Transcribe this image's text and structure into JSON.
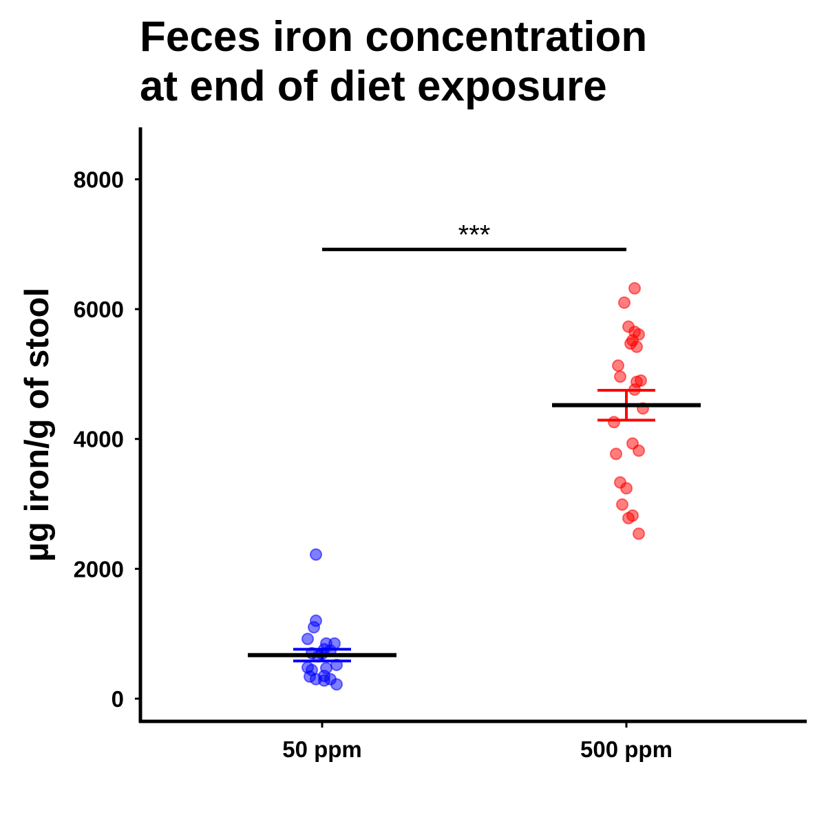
{
  "chart_data": {
    "type": "scatter",
    "title": "Feces iron concentration",
    "subtitle": "at end of diet exposure",
    "xlabel": "",
    "ylabel": "µg iron/g of stool",
    "categories": [
      "50 ppm",
      "500 ppm"
    ],
    "ylim": [
      -350,
      8800
    ],
    "yticks": [
      0,
      2000,
      4000,
      6000,
      8000
    ],
    "ytick_labels": [
      "0",
      "2000",
      "4000",
      "6000",
      "8000"
    ],
    "grid": false,
    "legend": "none",
    "significance": {
      "label": "***",
      "y": 6920,
      "between": [
        "50 ppm",
        "500 ppm"
      ]
    },
    "series": [
      {
        "category": "50 ppm",
        "color": "#0000ff",
        "mean": 670,
        "sem_low": 580,
        "sem_high": 760,
        "points": [
          {
            "x": -0.03,
            "y": 2220
          },
          {
            "x": -0.03,
            "y": 1200
          },
          {
            "x": -0.04,
            "y": 1100
          },
          {
            "x": -0.07,
            "y": 920
          },
          {
            "x": 0.02,
            "y": 850
          },
          {
            "x": 0.06,
            "y": 850
          },
          {
            "x": 0.01,
            "y": 760
          },
          {
            "x": 0.04,
            "y": 740
          },
          {
            "x": -0.05,
            "y": 700
          },
          {
            "x": 0.0,
            "y": 690
          },
          {
            "x": -0.02,
            "y": 650
          },
          {
            "x": 0.07,
            "y": 520
          },
          {
            "x": -0.07,
            "y": 480
          },
          {
            "x": 0.02,
            "y": 470
          },
          {
            "x": -0.05,
            "y": 440
          },
          {
            "x": -0.06,
            "y": 340
          },
          {
            "x": 0.01,
            "y": 350
          },
          {
            "x": -0.03,
            "y": 300
          },
          {
            "x": 0.01,
            "y": 280
          },
          {
            "x": 0.04,
            "y": 300
          },
          {
            "x": 0.07,
            "y": 220
          }
        ]
      },
      {
        "category": "500 ppm",
        "color": "#ff0000",
        "mean": 4520,
        "sem_low": 4290,
        "sem_high": 4750,
        "points": [
          {
            "x": 0.04,
            "y": 6320
          },
          {
            "x": -0.01,
            "y": 6100
          },
          {
            "x": 0.01,
            "y": 5730
          },
          {
            "x": 0.04,
            "y": 5650
          },
          {
            "x": 0.06,
            "y": 5610
          },
          {
            "x": 0.03,
            "y": 5520
          },
          {
            "x": 0.02,
            "y": 5470
          },
          {
            "x": 0.05,
            "y": 5420
          },
          {
            "x": -0.04,
            "y": 5130
          },
          {
            "x": -0.03,
            "y": 4960
          },
          {
            "x": 0.07,
            "y": 4900
          },
          {
            "x": 0.05,
            "y": 4880
          },
          {
            "x": 0.04,
            "y": 4760
          },
          {
            "x": 0.08,
            "y": 4470
          },
          {
            "x": -0.06,
            "y": 4260
          },
          {
            "x": 0.03,
            "y": 3930
          },
          {
            "x": 0.06,
            "y": 3820
          },
          {
            "x": -0.05,
            "y": 3770
          },
          {
            "x": -0.03,
            "y": 3330
          },
          {
            "x": 0.0,
            "y": 3240
          },
          {
            "x": -0.02,
            "y": 2990
          },
          {
            "x": 0.03,
            "y": 2820
          },
          {
            "x": 0.01,
            "y": 2780
          },
          {
            "x": 0.06,
            "y": 2540
          }
        ]
      }
    ]
  }
}
